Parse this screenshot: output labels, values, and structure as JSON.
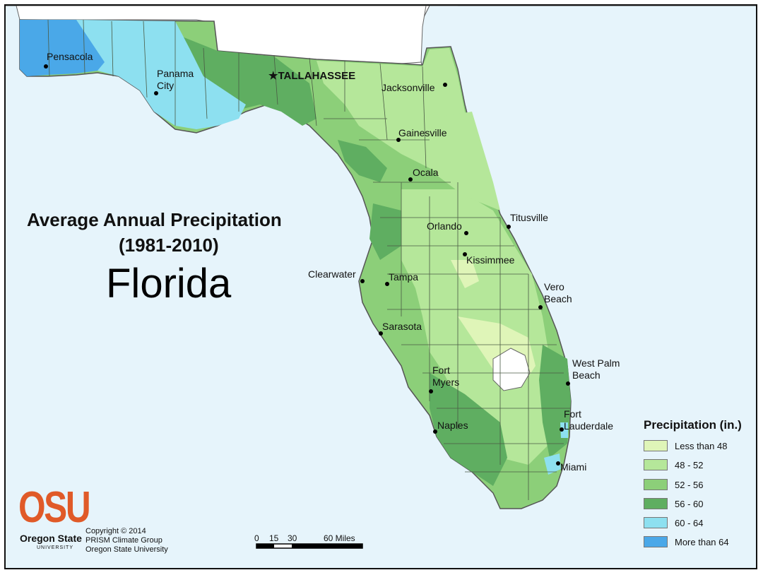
{
  "map": {
    "title_line1": "Average Annual Precipitation",
    "title_line2": "(1981-2010)",
    "state": "Florida",
    "capital": "TALLAHASSEE",
    "cities": [
      {
        "name": "Pensacola"
      },
      {
        "name": "Panama\nCity"
      },
      {
        "name": "Jacksonville"
      },
      {
        "name": "Gainesville"
      },
      {
        "name": "Ocala"
      },
      {
        "name": "Titusville"
      },
      {
        "name": "Orlando"
      },
      {
        "name": "Kissimmee"
      },
      {
        "name": "Clearwater"
      },
      {
        "name": "Tampa"
      },
      {
        "name": "Vero\nBeach"
      },
      {
        "name": "Sarasota"
      },
      {
        "name": "West Palm\nBeach"
      },
      {
        "name": "Fort\nMyers"
      },
      {
        "name": "Fort\nLauderdale"
      },
      {
        "name": "Naples"
      },
      {
        "name": "Miami"
      }
    ],
    "colors": {
      "water": "#e6f4fb",
      "land_other": "#ffffff",
      "border": "#555555"
    }
  },
  "legend": {
    "title": "Precipitation (in.)",
    "items": [
      {
        "label": "Less than 48",
        "color": "#dff5b8"
      },
      {
        "label": "48 - 52",
        "color": "#b5e79a"
      },
      {
        "label": "52 - 56",
        "color": "#8ccf79"
      },
      {
        "label": "56 - 60",
        "color": "#5fae61"
      },
      {
        "label": "60 - 64",
        "color": "#8de0f0"
      },
      {
        "label": "More than 64",
        "color": "#4aa8e8"
      }
    ]
  },
  "scale_bar": {
    "ticks": [
      "0",
      "15",
      "30",
      "60 Miles"
    ]
  },
  "credits": {
    "logo": "OSU",
    "logo_line1": "Oregon State",
    "logo_line2": "UNIVERSITY",
    "copyright": "Copyright © 2014",
    "group": "PRISM Climate Group",
    "org": "Oregon State University"
  }
}
